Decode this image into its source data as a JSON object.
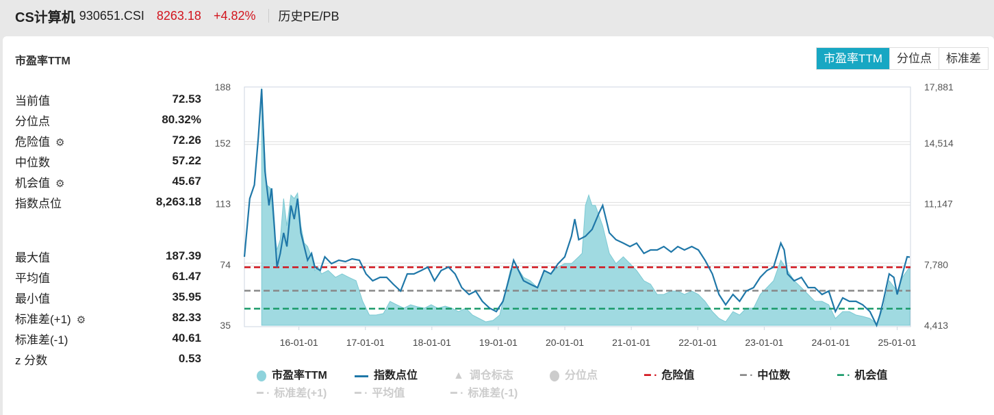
{
  "header": {
    "name": "CS计算机",
    "code": "930651.CSI",
    "price": "8263.18",
    "change": "+4.82%",
    "link": "历史PE/PB"
  },
  "panel": {
    "title": "市盈率TTM",
    "tabs": [
      "市盈率TTM",
      "分位点",
      "标准差"
    ],
    "active_tab": 0
  },
  "stats1": [
    {
      "label": "当前值",
      "value": "72.53",
      "gear": false
    },
    {
      "label": "分位点",
      "value": "80.32%",
      "gear": false
    },
    {
      "label": "危险值",
      "value": "72.26",
      "gear": true
    },
    {
      "label": "中位数",
      "value": "57.22",
      "gear": false
    },
    {
      "label": "机会值",
      "value": "45.67",
      "gear": true
    },
    {
      "label": "指数点位",
      "value": "8,263.18",
      "gear": false
    }
  ],
  "stats2": [
    {
      "label": "最大值",
      "value": "187.39",
      "gear": false
    },
    {
      "label": "平均值",
      "value": "61.47",
      "gear": false
    },
    {
      "label": "最小值",
      "value": "35.95",
      "gear": false
    },
    {
      "label": "标准差(+1)",
      "value": "82.33",
      "gear": true
    },
    {
      "label": "标准差(-1)",
      "value": "40.61",
      "gear": false
    },
    {
      "label": "z 分数",
      "value": "0.53",
      "gear": false
    }
  ],
  "colors": {
    "pe": "#8fd3dc",
    "index": "#1f77a8",
    "danger": "#d2141d",
    "median": "#888888",
    "chance": "#1a9a6a",
    "active": "#17a7c3"
  },
  "chart_data": {
    "type": "area+line",
    "xlim": [
      2015.18,
      2025.2
    ],
    "x_ticks": [
      {
        "label": "16-01-01",
        "x": 2016
      },
      {
        "label": "17-01-01",
        "x": 2017
      },
      {
        "label": "18-01-01",
        "x": 2018
      },
      {
        "label": "19-01-01",
        "x": 2019
      },
      {
        "label": "20-01-01",
        "x": 2020
      },
      {
        "label": "21-01-01",
        "x": 2021
      },
      {
        "label": "22-01-01",
        "x": 2022
      },
      {
        "label": "23-01-01",
        "x": 2023
      },
      {
        "label": "24-01-01",
        "x": 2024
      },
      {
        "label": "25-01-01",
        "x": 2025
      }
    ],
    "left_axis": {
      "ylim": [
        35,
        188
      ],
      "ticks": [
        "188",
        "152",
        "113",
        "74",
        "35"
      ],
      "tick_values": [
        188,
        152,
        113,
        74,
        35
      ]
    },
    "right_axis": {
      "ylim": [
        4413,
        17881
      ],
      "ticks": [
        "17,881",
        "14,514",
        "11,147",
        "7,780",
        "4,413"
      ]
    },
    "reference_lines": [
      {
        "name": "危险值",
        "value": 72.26,
        "color": "#d2141d"
      },
      {
        "name": "中位数",
        "value": 57.22,
        "color": "#888888"
      },
      {
        "name": "机会值",
        "value": 45.67,
        "color": "#1a9a6a"
      }
    ],
    "legend": [
      {
        "label": "市盈率TTM",
        "active": true
      },
      {
        "label": "指数点位",
        "active": true
      },
      {
        "label": "调仓标志",
        "active": false
      },
      {
        "label": "分位点",
        "active": false
      },
      {
        "label": "危险值",
        "active": true
      },
      {
        "label": "中位数",
        "active": true
      },
      {
        "label": "机会值",
        "active": true
      },
      {
        "label": "标准差(+1)",
        "active": false
      },
      {
        "label": "平均值",
        "active": false
      },
      {
        "label": "标准差(-1)",
        "active": false
      }
    ],
    "pe_series": [
      [
        2015.44,
        187.39
      ],
      [
        2015.51,
        125.2
      ],
      [
        2015.57,
        123
      ],
      [
        2015.62,
        98.8
      ],
      [
        2015.67,
        83.4
      ],
      [
        2015.72,
        90
      ],
      [
        2015.77,
        116.4
      ],
      [
        2015.82,
        98.8
      ],
      [
        2015.88,
        118.6
      ],
      [
        2015.93,
        116.4
      ],
      [
        2015.98,
        119.9
      ],
      [
        2016.03,
        98.8
      ],
      [
        2016.08,
        87.8
      ],
      [
        2016.13,
        85.6
      ],
      [
        2016.19,
        79
      ],
      [
        2016.24,
        70.2
      ],
      [
        2016.29,
        72.4
      ],
      [
        2016.34,
        68
      ],
      [
        2016.44,
        70.2
      ],
      [
        2016.55,
        65.8
      ],
      [
        2016.65,
        68
      ],
      [
        2016.75,
        65.8
      ],
      [
        2016.86,
        63.6
      ],
      [
        2016.96,
        50.4
      ],
      [
        2017.06,
        41.6
      ],
      [
        2017.16,
        41.6
      ],
      [
        2017.27,
        42.5
      ],
      [
        2017.37,
        50.4
      ],
      [
        2017.47,
        48.2
      ],
      [
        2017.58,
        46
      ],
      [
        2017.68,
        48.2
      ],
      [
        2017.78,
        46.9
      ],
      [
        2017.89,
        46
      ],
      [
        2017.99,
        48.2
      ],
      [
        2018.09,
        46
      ],
      [
        2018.2,
        47.3
      ],
      [
        2018.3,
        46
      ],
      [
        2018.4,
        43.8
      ],
      [
        2018.51,
        46
      ],
      [
        2018.61,
        41.6
      ],
      [
        2018.71,
        39.4
      ],
      [
        2018.81,
        37.2
      ],
      [
        2018.92,
        38.1
      ],
      [
        2019.02,
        41.6
      ],
      [
        2019.12,
        59.2
      ],
      [
        2019.18,
        70.2
      ],
      [
        2019.28,
        72.4
      ],
      [
        2019.38,
        65.8
      ],
      [
        2019.48,
        63.6
      ],
      [
        2019.59,
        59.2
      ],
      [
        2019.69,
        70.2
      ],
      [
        2019.79,
        68
      ],
      [
        2019.9,
        72.4
      ],
      [
        2020,
        74.6
      ],
      [
        2020.1,
        74.6
      ],
      [
        2020.21,
        79
      ],
      [
        2020.26,
        81.2
      ],
      [
        2020.31,
        112
      ],
      [
        2020.36,
        118.6
      ],
      [
        2020.41,
        112
      ],
      [
        2020.46,
        112
      ],
      [
        2020.57,
        98.8
      ],
      [
        2020.67,
        81.2
      ],
      [
        2020.77,
        74.6
      ],
      [
        2020.88,
        79
      ],
      [
        2020.98,
        74.6
      ],
      [
        2021.08,
        70.2
      ],
      [
        2021.19,
        63.6
      ],
      [
        2021.29,
        61.4
      ],
      [
        2021.39,
        54.8
      ],
      [
        2021.49,
        54.8
      ],
      [
        2021.6,
        57
      ],
      [
        2021.7,
        57
      ],
      [
        2021.8,
        54.8
      ],
      [
        2021.91,
        57
      ],
      [
        2022.01,
        54.8
      ],
      [
        2022.11,
        50.4
      ],
      [
        2022.22,
        43.8
      ],
      [
        2022.32,
        39.4
      ],
      [
        2022.42,
        37.2
      ],
      [
        2022.53,
        43.8
      ],
      [
        2022.63,
        41.6
      ],
      [
        2022.73,
        46
      ],
      [
        2022.84,
        46
      ],
      [
        2022.94,
        54.8
      ],
      [
        2023.04,
        59.2
      ],
      [
        2023.14,
        63.6
      ],
      [
        2023.25,
        76.8
      ],
      [
        2023.35,
        70.2
      ],
      [
        2023.45,
        63.6
      ],
      [
        2023.56,
        59.2
      ],
      [
        2023.66,
        54.8
      ],
      [
        2023.76,
        50.4
      ],
      [
        2023.87,
        50.4
      ],
      [
        2023.97,
        48.2
      ],
      [
        2024.07,
        39.4
      ],
      [
        2024.18,
        43.8
      ],
      [
        2024.28,
        43.8
      ],
      [
        2024.38,
        41.6
      ],
      [
        2024.48,
        40.7
      ],
      [
        2024.59,
        39.4
      ],
      [
        2024.69,
        35.95
      ],
      [
        2024.79,
        46
      ],
      [
        2024.88,
        63.6
      ],
      [
        2025,
        57
      ],
      [
        2025.08,
        65.8
      ],
      [
        2025.19,
        72.53
      ]
    ],
    "index_series": [
      [
        2015.18,
        8283
      ],
      [
        2015.26,
        11573
      ],
      [
        2015.33,
        12347
      ],
      [
        2015.39,
        15056
      ],
      [
        2015.44,
        17765
      ],
      [
        2015.49,
        13121
      ],
      [
        2015.55,
        11186
      ],
      [
        2015.59,
        12153
      ],
      [
        2015.63,
        10025
      ],
      [
        2015.67,
        7703
      ],
      [
        2015.72,
        8477
      ],
      [
        2015.77,
        9638
      ],
      [
        2015.82,
        8864
      ],
      [
        2015.88,
        11186
      ],
      [
        2015.93,
        10412
      ],
      [
        2015.98,
        11573
      ],
      [
        2016.03,
        9638
      ],
      [
        2016.08,
        8864
      ],
      [
        2016.13,
        8090
      ],
      [
        2016.19,
        8477
      ],
      [
        2016.24,
        7703
      ],
      [
        2016.32,
        7509
      ],
      [
        2016.39,
        8283
      ],
      [
        2016.49,
        7896
      ],
      [
        2016.6,
        8090
      ],
      [
        2016.7,
        8012
      ],
      [
        2016.8,
        8167
      ],
      [
        2016.91,
        8090
      ],
      [
        2017.01,
        7316
      ],
      [
        2017.11,
        6929
      ],
      [
        2017.22,
        7122
      ],
      [
        2017.32,
        7122
      ],
      [
        2017.42,
        6735
      ],
      [
        2017.53,
        6348
      ],
      [
        2017.63,
        7316
      ],
      [
        2017.73,
        7316
      ],
      [
        2017.84,
        7509
      ],
      [
        2017.94,
        7703
      ],
      [
        2018.04,
        6929
      ],
      [
        2018.14,
        7509
      ],
      [
        2018.25,
        7703
      ],
      [
        2018.35,
        7316
      ],
      [
        2018.45,
        6542
      ],
      [
        2018.56,
        6155
      ],
      [
        2018.66,
        6348
      ],
      [
        2018.76,
        5768
      ],
      [
        2018.87,
        5381
      ],
      [
        2018.97,
        5187
      ],
      [
        2019.07,
        5768
      ],
      [
        2019.18,
        7316
      ],
      [
        2019.23,
        8090
      ],
      [
        2019.28,
        7703
      ],
      [
        2019.38,
        6929
      ],
      [
        2019.48,
        6735
      ],
      [
        2019.59,
        6542
      ],
      [
        2019.69,
        7509
      ],
      [
        2019.79,
        7316
      ],
      [
        2019.9,
        7896
      ],
      [
        2020,
        8283
      ],
      [
        2020.1,
        9444
      ],
      [
        2020.15,
        10412
      ],
      [
        2020.21,
        9251
      ],
      [
        2020.31,
        9444
      ],
      [
        2020.41,
        9831
      ],
      [
        2020.52,
        10799
      ],
      [
        2020.57,
        11186
      ],
      [
        2020.62,
        10412
      ],
      [
        2020.67,
        9638
      ],
      [
        2020.77,
        9251
      ],
      [
        2020.88,
        9057
      ],
      [
        2020.98,
        8864
      ],
      [
        2021.08,
        9057
      ],
      [
        2021.19,
        8477
      ],
      [
        2021.29,
        8670
      ],
      [
        2021.39,
        8670
      ],
      [
        2021.49,
        8864
      ],
      [
        2021.6,
        8554
      ],
      [
        2021.7,
        8864
      ],
      [
        2021.8,
        8670
      ],
      [
        2021.91,
        8864
      ],
      [
        2022.01,
        8670
      ],
      [
        2022.11,
        8090
      ],
      [
        2022.22,
        7316
      ],
      [
        2022.32,
        6155
      ],
      [
        2022.42,
        5574
      ],
      [
        2022.53,
        6155
      ],
      [
        2022.63,
        5768
      ],
      [
        2022.73,
        6348
      ],
      [
        2022.84,
        6542
      ],
      [
        2022.94,
        7122
      ],
      [
        2023.04,
        7509
      ],
      [
        2023.14,
        7703
      ],
      [
        2023.25,
        9057
      ],
      [
        2023.3,
        8670
      ],
      [
        2023.35,
        7316
      ],
      [
        2023.45,
        6929
      ],
      [
        2023.56,
        7122
      ],
      [
        2023.66,
        6542
      ],
      [
        2023.76,
        6542
      ],
      [
        2023.87,
        6155
      ],
      [
        2023.97,
        6348
      ],
      [
        2024.07,
        5187
      ],
      [
        2024.18,
        5961
      ],
      [
        2024.28,
        5768
      ],
      [
        2024.38,
        5768
      ],
      [
        2024.48,
        5574
      ],
      [
        2024.59,
        5187
      ],
      [
        2024.69,
        4413
      ],
      [
        2024.74,
        4994
      ],
      [
        2024.79,
        5768
      ],
      [
        2024.88,
        7316
      ],
      [
        2024.95,
        7122
      ],
      [
        2025,
        6155
      ],
      [
        2025.08,
        7316
      ],
      [
        2025.15,
        8283
      ],
      [
        2025.19,
        8263
      ]
    ]
  }
}
